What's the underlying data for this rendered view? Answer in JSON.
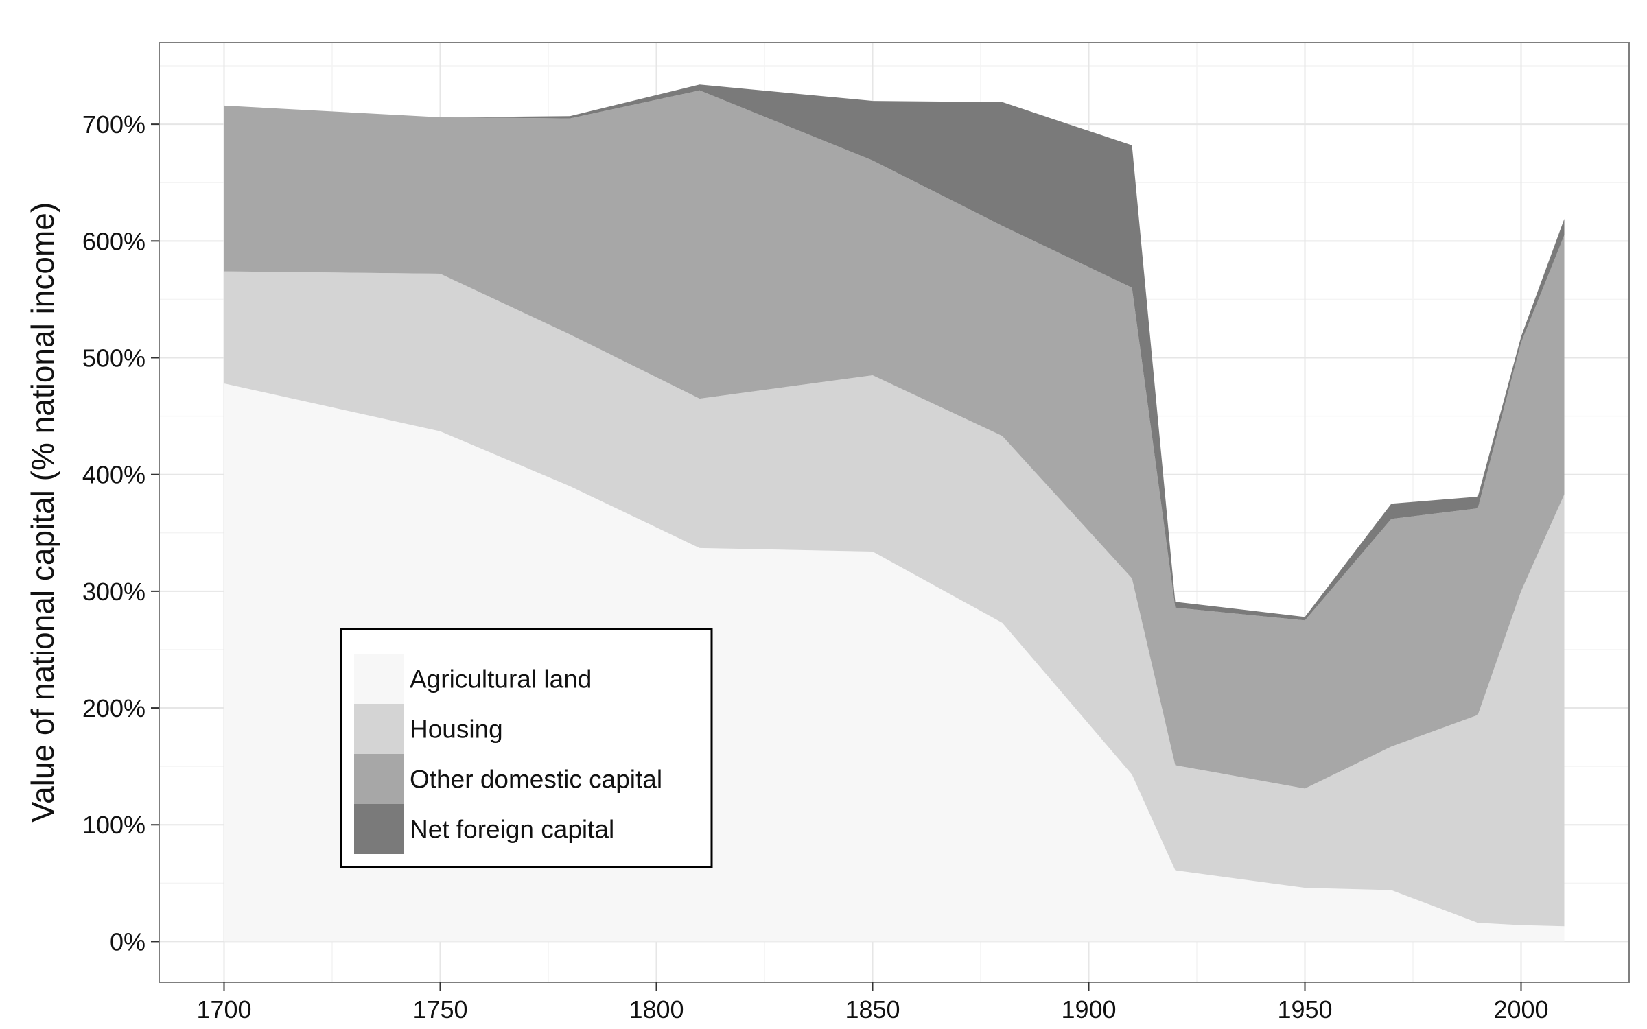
{
  "chart_data": {
    "type": "area",
    "stacked": true,
    "title": "",
    "xlabel": "",
    "ylabel": "Value of national capital (% national income)",
    "x": [
      1700,
      1750,
      1780,
      1810,
      1850,
      1880,
      1910,
      1920,
      1950,
      1970,
      1990,
      2000,
      2010
    ],
    "xlim": [
      1685,
      2025
    ],
    "ylim": [
      -35,
      770
    ],
    "x_ticks": [
      1700,
      1750,
      1800,
      1850,
      1900,
      1950,
      2000
    ],
    "x_tick_labels": [
      "1700",
      "1750",
      "1800",
      "1850",
      "1900",
      "1950",
      "2000"
    ],
    "y_ticks": [
      0,
      100,
      200,
      300,
      400,
      500,
      600,
      700
    ],
    "y_tick_labels": [
      "0%",
      "100%",
      "200%",
      "300%",
      "400%",
      "500%",
      "600%",
      "700%"
    ],
    "grid": true,
    "legend_position": "bottom-left",
    "series": [
      {
        "name": "Agricultural land",
        "color": "#f7f7f7",
        "values": [
          478,
          437,
          390,
          337,
          334,
          273,
          143,
          61,
          46,
          44,
          16,
          14,
          13
        ]
      },
      {
        "name": "Housing",
        "color": "#d4d4d4",
        "values": [
          96,
          135,
          130,
          128,
          151,
          160,
          168,
          90,
          85,
          123,
          178,
          286,
          370
        ]
      },
      {
        "name": "Other domestic capital",
        "color": "#a7a7a7",
        "values": [
          142,
          134,
          185,
          264,
          184,
          180,
          249,
          135,
          144,
          195,
          177,
          213,
          222
        ]
      },
      {
        "name": "Net foreign capital",
        "color": "#7a7a7a",
        "values": [
          0,
          0,
          2,
          5,
          51,
          106,
          122,
          5,
          3,
          13,
          10,
          5,
          14
        ]
      }
    ]
  }
}
